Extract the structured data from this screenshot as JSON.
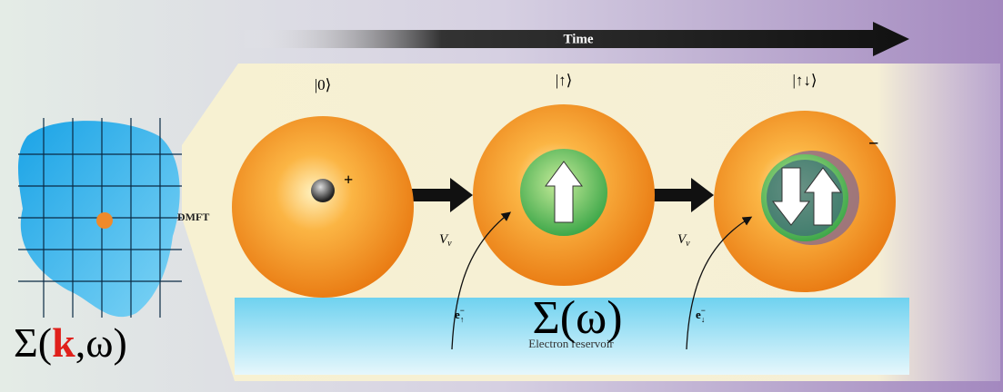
{
  "time_label": "Time",
  "states": [
    {
      "label": "|0⟩",
      "charge": "+"
    },
    {
      "label": "|↑⟩"
    },
    {
      "label": "|↑↓⟩",
      "charge": "−"
    }
  ],
  "dmft_label": "DMFT",
  "hybridization": [
    {
      "symbol": "V",
      "sub": "ν"
    },
    {
      "symbol": "V",
      "sub": "ν"
    }
  ],
  "electrons": [
    {
      "symbol": "e",
      "sup": "−",
      "sub": "↑"
    },
    {
      "symbol": "e",
      "sup": "−",
      "sub": "↓"
    }
  ],
  "reservoir_label": "Electron reservoir",
  "local_self_energy": "Σ(ω)",
  "lattice_self_energy": {
    "prefix": "Σ(",
    "k": "k",
    "suffix": ",ω)"
  }
}
